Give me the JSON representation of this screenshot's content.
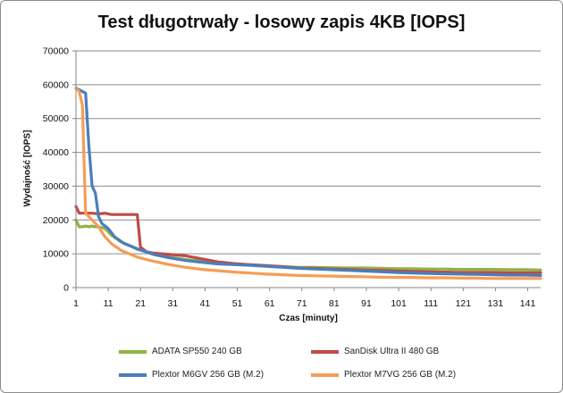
{
  "chart_data": {
    "type": "line",
    "title": "Test długotrwały - losowy zapis 4KB [IOPS]",
    "xlabel": "Czas [minuty]",
    "ylabel": "Wydajność [IOPS]",
    "ylim": [
      0,
      70000
    ],
    "xlim": [
      1,
      145
    ],
    "yticks": [
      0,
      10000,
      20000,
      30000,
      40000,
      50000,
      60000,
      70000
    ],
    "ytick_labels": [
      "0",
      "10000",
      "20000",
      "30000",
      "40000",
      "50000",
      "60000",
      "70000"
    ],
    "xticks": [
      1,
      11,
      21,
      31,
      41,
      51,
      61,
      71,
      81,
      91,
      101,
      111,
      121,
      131,
      141
    ],
    "xtick_labels": [
      "1",
      "11",
      "21",
      "31",
      "41",
      "51",
      "61",
      "71",
      "81",
      "91",
      "101",
      "111",
      "121",
      "131",
      "141"
    ],
    "grid": "horizontal",
    "legend_position": "bottom",
    "series": [
      {
        "name": "ADATA SP550 240 GB",
        "color": "#8DB443",
        "points": [
          [
            1,
            20000
          ],
          [
            2,
            18000
          ],
          [
            3,
            18000
          ],
          [
            4,
            18200
          ],
          [
            5,
            18000
          ],
          [
            6,
            18200
          ],
          [
            7,
            18000
          ],
          [
            8,
            18000
          ],
          [
            10,
            17500
          ],
          [
            12,
            15500
          ],
          [
            15,
            13500
          ],
          [
            18,
            12300
          ],
          [
            20,
            11300
          ],
          [
            22,
            10800
          ],
          [
            25,
            10200
          ],
          [
            30,
            9000
          ],
          [
            35,
            8300
          ],
          [
            40,
            7800
          ],
          [
            45,
            7200
          ],
          [
            50,
            6900
          ],
          [
            55,
            6600
          ],
          [
            60,
            6400
          ],
          [
            65,
            6200
          ],
          [
            70,
            6000
          ],
          [
            75,
            6000
          ],
          [
            80,
            5900
          ],
          [
            85,
            5800
          ],
          [
            90,
            5800
          ],
          [
            95,
            5700
          ],
          [
            100,
            5600
          ],
          [
            105,
            5600
          ],
          [
            110,
            5500
          ],
          [
            115,
            5500
          ],
          [
            120,
            5400
          ],
          [
            125,
            5400
          ],
          [
            130,
            5400
          ],
          [
            135,
            5300
          ],
          [
            140,
            5300
          ],
          [
            145,
            5200
          ]
        ]
      },
      {
        "name": "SanDisk Ultra II 480 GB",
        "color": "#BE4B48",
        "points": [
          [
            1,
            24000
          ],
          [
            2,
            22000
          ],
          [
            4,
            22000
          ],
          [
            6,
            22000
          ],
          [
            8,
            21800
          ],
          [
            10,
            22000
          ],
          [
            12,
            21600
          ],
          [
            15,
            21600
          ],
          [
            18,
            21600
          ],
          [
            20,
            21600
          ],
          [
            21,
            12000
          ],
          [
            23,
            10500
          ],
          [
            25,
            10200
          ],
          [
            30,
            9800
          ],
          [
            35,
            9400
          ],
          [
            40,
            8500
          ],
          [
            45,
            7600
          ],
          [
            50,
            7100
          ],
          [
            55,
            6800
          ],
          [
            60,
            6500
          ],
          [
            65,
            6200
          ],
          [
            70,
            5800
          ],
          [
            75,
            5700
          ],
          [
            80,
            5500
          ],
          [
            85,
            5400
          ],
          [
            90,
            5200
          ],
          [
            95,
            5100
          ],
          [
            100,
            4900
          ],
          [
            105,
            4800
          ],
          [
            110,
            4700
          ],
          [
            115,
            4600
          ],
          [
            120,
            4500
          ],
          [
            125,
            4500
          ],
          [
            130,
            4500
          ],
          [
            135,
            4400
          ],
          [
            140,
            4400
          ],
          [
            145,
            4400
          ]
        ]
      },
      {
        "name": "Plextor M6GV 256 GB (M.2)",
        "color": "#4A7EBB",
        "points": [
          [
            1,
            59000
          ],
          [
            2,
            58500
          ],
          [
            3,
            58000
          ],
          [
            4,
            57500
          ],
          [
            5,
            42000
          ],
          [
            6,
            30000
          ],
          [
            7,
            28000
          ],
          [
            8,
            21000
          ],
          [
            9,
            19000
          ],
          [
            11,
            17500
          ],
          [
            13,
            15000
          ],
          [
            16,
            13000
          ],
          [
            20,
            11500
          ],
          [
            25,
            9800
          ],
          [
            30,
            8800
          ],
          [
            35,
            8000
          ],
          [
            40,
            7500
          ],
          [
            45,
            7000
          ],
          [
            50,
            6800
          ],
          [
            55,
            6600
          ],
          [
            60,
            6300
          ],
          [
            65,
            6000
          ],
          [
            70,
            5700
          ],
          [
            75,
            5500
          ],
          [
            80,
            5300
          ],
          [
            85,
            5100
          ],
          [
            90,
            4900
          ],
          [
            95,
            4700
          ],
          [
            100,
            4500
          ],
          [
            105,
            4300
          ],
          [
            110,
            4200
          ],
          [
            115,
            4100
          ],
          [
            120,
            4000
          ],
          [
            125,
            3900
          ],
          [
            130,
            3800
          ],
          [
            135,
            3700
          ],
          [
            140,
            3700
          ],
          [
            145,
            3600
          ]
        ]
      },
      {
        "name": "Plextor M7VG 256 GB (M.2)",
        "color": "#F59D56",
        "points": [
          [
            1,
            59000
          ],
          [
            2,
            58000
          ],
          [
            3,
            54000
          ],
          [
            4,
            22000
          ],
          [
            5,
            21000
          ],
          [
            6,
            20000
          ],
          [
            8,
            18000
          ],
          [
            10,
            15000
          ],
          [
            12,
            13000
          ],
          [
            15,
            11000
          ],
          [
            20,
            9000
          ],
          [
            25,
            7800
          ],
          [
            30,
            6800
          ],
          [
            35,
            6000
          ],
          [
            40,
            5400
          ],
          [
            45,
            5000
          ],
          [
            50,
            4600
          ],
          [
            55,
            4300
          ],
          [
            60,
            4000
          ],
          [
            65,
            3800
          ],
          [
            70,
            3600
          ],
          [
            75,
            3500
          ],
          [
            80,
            3400
          ],
          [
            85,
            3300
          ],
          [
            90,
            3200
          ],
          [
            95,
            3100
          ],
          [
            100,
            3000
          ],
          [
            105,
            3000
          ],
          [
            110,
            2900
          ],
          [
            115,
            2900
          ],
          [
            120,
            2800
          ],
          [
            125,
            2800
          ],
          [
            130,
            2700
          ],
          [
            135,
            2700
          ],
          [
            140,
            2700
          ],
          [
            145,
            2700
          ]
        ]
      }
    ]
  }
}
